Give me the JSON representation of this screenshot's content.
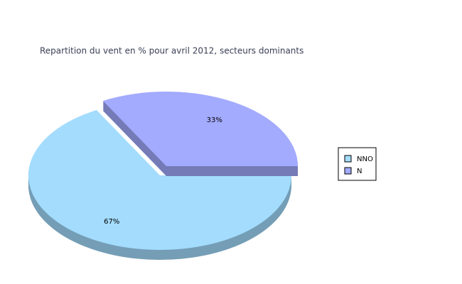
{
  "chart_data": {
    "type": "pie",
    "title": "Repartition du vent en % pour avril 2012, secteurs dominants",
    "categories": [
      "NNO",
      "N"
    ],
    "values": [
      67,
      33
    ],
    "value_labels": [
      "67%",
      "33%"
    ],
    "colors": [
      "#a3dcfd",
      "#a3abfe"
    ],
    "legend": "right"
  }
}
